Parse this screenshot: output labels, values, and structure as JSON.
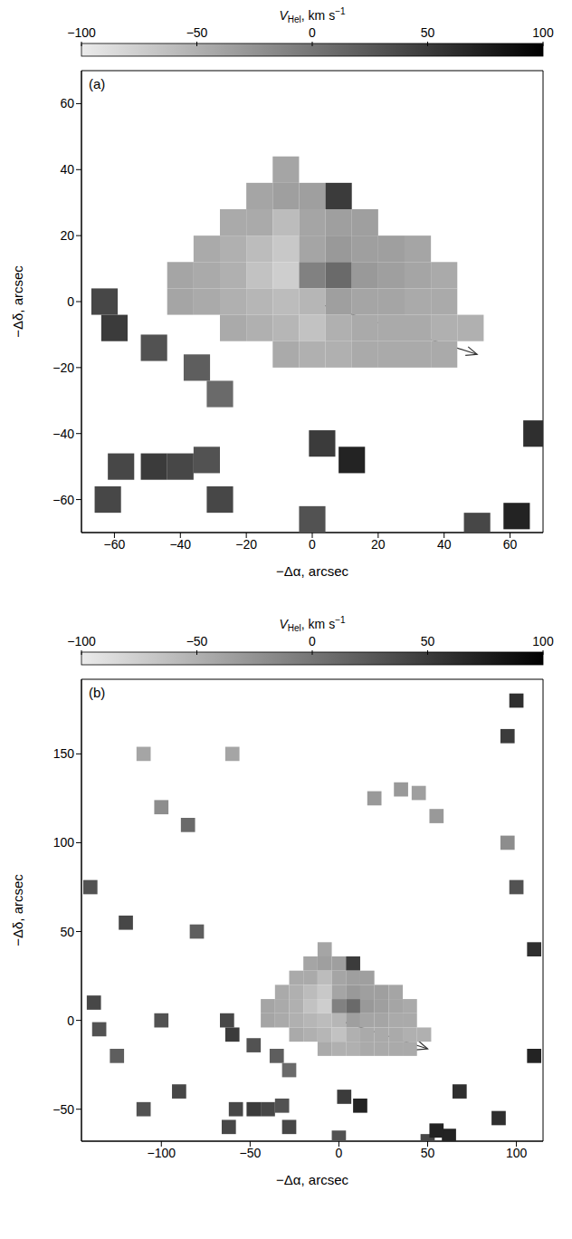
{
  "chart_data": [
    {
      "type": "scatter",
      "panel": "(a)",
      "marker": "square",
      "cell_size": 8,
      "x_label": "−Δα, arcsec",
      "y_label": "−Δδ, arcsec",
      "xlim": [
        -70,
        70
      ],
      "xticks": [
        -60,
        -40,
        -20,
        0,
        20,
        40,
        60
      ],
      "ylim": [
        -70,
        70
      ],
      "yticks": [
        -60,
        -40,
        -20,
        0,
        20,
        40,
        60
      ],
      "colorbar": {
        "label": "V",
        "label_sub": "Hel",
        "unit": ", km s",
        "unit_sup": "−1",
        "lim": [
          -100,
          100
        ],
        "ticks": [
          -100,
          -50,
          0,
          50,
          100
        ]
      },
      "arrow": {
        "from": [
          0,
          0
        ],
        "to": [
          50,
          -16
        ]
      },
      "points": [
        {
          "x": -8,
          "y": 40,
          "v": -40
        },
        {
          "x": -16,
          "y": 32,
          "v": -40
        },
        {
          "x": -8,
          "y": 32,
          "v": -35
        },
        {
          "x": 0,
          "y": 32,
          "v": -35
        },
        {
          "x": 8,
          "y": 32,
          "v": 50
        },
        {
          "x": -24,
          "y": 24,
          "v": -45
        },
        {
          "x": -16,
          "y": 24,
          "v": -45
        },
        {
          "x": -8,
          "y": 24,
          "v": -60
        },
        {
          "x": 0,
          "y": 24,
          "v": -40
        },
        {
          "x": 8,
          "y": 24,
          "v": -35
        },
        {
          "x": 16,
          "y": 24,
          "v": -35
        },
        {
          "x": -32,
          "y": 16,
          "v": -45
        },
        {
          "x": -24,
          "y": 16,
          "v": -50
        },
        {
          "x": -16,
          "y": 16,
          "v": -60
        },
        {
          "x": -8,
          "y": 16,
          "v": -70
        },
        {
          "x": 0,
          "y": 16,
          "v": -40
        },
        {
          "x": 8,
          "y": 16,
          "v": -30
        },
        {
          "x": 16,
          "y": 16,
          "v": -35
        },
        {
          "x": 24,
          "y": 16,
          "v": -35
        },
        {
          "x": 32,
          "y": 16,
          "v": -40
        },
        {
          "x": -40,
          "y": 8,
          "v": -40
        },
        {
          "x": -32,
          "y": 8,
          "v": -45
        },
        {
          "x": -24,
          "y": 8,
          "v": -50
        },
        {
          "x": -16,
          "y": 8,
          "v": -65
        },
        {
          "x": -8,
          "y": 8,
          "v": -75
        },
        {
          "x": 0,
          "y": 8,
          "v": -10
        },
        {
          "x": 8,
          "y": 8,
          "v": 10
        },
        {
          "x": 16,
          "y": 8,
          "v": -30
        },
        {
          "x": 24,
          "y": 8,
          "v": -35
        },
        {
          "x": 32,
          "y": 8,
          "v": -40
        },
        {
          "x": 40,
          "y": 8,
          "v": -45
        },
        {
          "x": -40,
          "y": 0,
          "v": -40
        },
        {
          "x": -32,
          "y": 0,
          "v": -45
        },
        {
          "x": -24,
          "y": 0,
          "v": -50
        },
        {
          "x": -16,
          "y": 0,
          "v": -55
        },
        {
          "x": -8,
          "y": 0,
          "v": -60
        },
        {
          "x": 0,
          "y": 0,
          "v": -55
        },
        {
          "x": 8,
          "y": 0,
          "v": -35
        },
        {
          "x": 16,
          "y": 0,
          "v": -40
        },
        {
          "x": 24,
          "y": 0,
          "v": -40
        },
        {
          "x": 32,
          "y": 0,
          "v": -45
        },
        {
          "x": 40,
          "y": 0,
          "v": -45
        },
        {
          "x": -24,
          "y": -8,
          "v": -45
        },
        {
          "x": -16,
          "y": -8,
          "v": -50
        },
        {
          "x": -8,
          "y": -8,
          "v": -55
        },
        {
          "x": 0,
          "y": -8,
          "v": -65
        },
        {
          "x": 8,
          "y": -8,
          "v": -50
        },
        {
          "x": 16,
          "y": -8,
          "v": -45
        },
        {
          "x": 24,
          "y": -8,
          "v": -45
        },
        {
          "x": 32,
          "y": -8,
          "v": -45
        },
        {
          "x": 40,
          "y": -8,
          "v": -50
        },
        {
          "x": 48,
          "y": -8,
          "v": -50
        },
        {
          "x": -8,
          "y": -16,
          "v": -45
        },
        {
          "x": 0,
          "y": -16,
          "v": -50
        },
        {
          "x": 8,
          "y": -16,
          "v": -50
        },
        {
          "x": 16,
          "y": -16,
          "v": -45
        },
        {
          "x": 24,
          "y": -16,
          "v": -45
        },
        {
          "x": 32,
          "y": -16,
          "v": -45
        },
        {
          "x": 40,
          "y": -16,
          "v": -45
        },
        {
          "x": -63,
          "y": 0,
          "v": 40
        },
        {
          "x": -60,
          "y": -8,
          "v": 50
        },
        {
          "x": -48,
          "y": -14,
          "v": 30
        },
        {
          "x": -35,
          "y": -20,
          "v": 20
        },
        {
          "x": -28,
          "y": -28,
          "v": 10
        },
        {
          "x": -58,
          "y": -50,
          "v": 40
        },
        {
          "x": -48,
          "y": -50,
          "v": 50
        },
        {
          "x": -40,
          "y": -50,
          "v": 40
        },
        {
          "x": -32,
          "y": -48,
          "v": 30
        },
        {
          "x": -28,
          "y": -60,
          "v": 40
        },
        {
          "x": -62,
          "y": -60,
          "v": 40
        },
        {
          "x": 0,
          "y": -66,
          "v": 30
        },
        {
          "x": 3,
          "y": -43,
          "v": 50
        },
        {
          "x": 12,
          "y": -48,
          "v": 70
        },
        {
          "x": 62,
          "y": -65,
          "v": 70
        },
        {
          "x": 50,
          "y": -68,
          "v": 40
        },
        {
          "x": 68,
          "y": -40,
          "v": 60
        }
      ]
    },
    {
      "type": "scatter",
      "panel": "(b)",
      "marker": "square",
      "cell_size": 8,
      "x_label": "−Δα, arcsec",
      "y_label": "−Δδ, arcsec",
      "xlim": [
        -145,
        115
      ],
      "xticks": [
        -100,
        -50,
        0,
        50,
        100
      ],
      "ylim": [
        -68,
        192
      ],
      "yticks": [
        -50,
        0,
        50,
        100,
        150
      ],
      "colorbar": {
        "label": "V",
        "label_sub": "Hel",
        "unit": ", km s",
        "unit_sup": "−1",
        "lim": [
          -100,
          100
        ],
        "ticks": [
          -100,
          -50,
          0,
          50,
          100
        ]
      },
      "arrow": {
        "from": [
          0,
          0
        ],
        "to": [
          50,
          -16
        ]
      },
      "points": [
        {
          "x": -8,
          "y": 40,
          "v": -40
        },
        {
          "x": -16,
          "y": 32,
          "v": -40
        },
        {
          "x": -8,
          "y": 32,
          "v": -35
        },
        {
          "x": 0,
          "y": 32,
          "v": -35
        },
        {
          "x": 8,
          "y": 32,
          "v": 50
        },
        {
          "x": -24,
          "y": 24,
          "v": -45
        },
        {
          "x": -16,
          "y": 24,
          "v": -45
        },
        {
          "x": -8,
          "y": 24,
          "v": -60
        },
        {
          "x": 0,
          "y": 24,
          "v": -40
        },
        {
          "x": 8,
          "y": 24,
          "v": -35
        },
        {
          "x": 16,
          "y": 24,
          "v": -35
        },
        {
          "x": -32,
          "y": 16,
          "v": -45
        },
        {
          "x": -24,
          "y": 16,
          "v": -50
        },
        {
          "x": -16,
          "y": 16,
          "v": -60
        },
        {
          "x": -8,
          "y": 16,
          "v": -70
        },
        {
          "x": 0,
          "y": 16,
          "v": -40
        },
        {
          "x": 8,
          "y": 16,
          "v": -30
        },
        {
          "x": 16,
          "y": 16,
          "v": -35
        },
        {
          "x": 24,
          "y": 16,
          "v": -35
        },
        {
          "x": 32,
          "y": 16,
          "v": -40
        },
        {
          "x": -40,
          "y": 8,
          "v": -40
        },
        {
          "x": -32,
          "y": 8,
          "v": -45
        },
        {
          "x": -24,
          "y": 8,
          "v": -50
        },
        {
          "x": -16,
          "y": 8,
          "v": -65
        },
        {
          "x": -8,
          "y": 8,
          "v": -75
        },
        {
          "x": 0,
          "y": 8,
          "v": -10
        },
        {
          "x": 8,
          "y": 8,
          "v": 10
        },
        {
          "x": 16,
          "y": 8,
          "v": -30
        },
        {
          "x": 24,
          "y": 8,
          "v": -35
        },
        {
          "x": 32,
          "y": 8,
          "v": -40
        },
        {
          "x": 40,
          "y": 8,
          "v": -45
        },
        {
          "x": -40,
          "y": 0,
          "v": -40
        },
        {
          "x": -32,
          "y": 0,
          "v": -45
        },
        {
          "x": -24,
          "y": 0,
          "v": -50
        },
        {
          "x": -16,
          "y": 0,
          "v": -55
        },
        {
          "x": -8,
          "y": 0,
          "v": -60
        },
        {
          "x": 0,
          "y": 0,
          "v": -55
        },
        {
          "x": 8,
          "y": 0,
          "v": -35
        },
        {
          "x": 16,
          "y": 0,
          "v": -40
        },
        {
          "x": 24,
          "y": 0,
          "v": -40
        },
        {
          "x": 32,
          "y": 0,
          "v": -45
        },
        {
          "x": 40,
          "y": 0,
          "v": -45
        },
        {
          "x": -24,
          "y": -8,
          "v": -45
        },
        {
          "x": -16,
          "y": -8,
          "v": -50
        },
        {
          "x": -8,
          "y": -8,
          "v": -55
        },
        {
          "x": 0,
          "y": -8,
          "v": -65
        },
        {
          "x": 8,
          "y": -8,
          "v": -50
        },
        {
          "x": 16,
          "y": -8,
          "v": -45
        },
        {
          "x": 24,
          "y": -8,
          "v": -45
        },
        {
          "x": 32,
          "y": -8,
          "v": -45
        },
        {
          "x": 40,
          "y": -8,
          "v": -50
        },
        {
          "x": 48,
          "y": -8,
          "v": -50
        },
        {
          "x": -8,
          "y": -16,
          "v": -45
        },
        {
          "x": 0,
          "y": -16,
          "v": -50
        },
        {
          "x": 8,
          "y": -16,
          "v": -50
        },
        {
          "x": 16,
          "y": -16,
          "v": -45
        },
        {
          "x": 24,
          "y": -16,
          "v": -45
        },
        {
          "x": 32,
          "y": -16,
          "v": -45
        },
        {
          "x": 40,
          "y": -16,
          "v": -45
        },
        {
          "x": -63,
          "y": 0,
          "v": 40
        },
        {
          "x": -60,
          "y": -8,
          "v": 50
        },
        {
          "x": -48,
          "y": -14,
          "v": 30
        },
        {
          "x": -35,
          "y": -20,
          "v": 20
        },
        {
          "x": -28,
          "y": -28,
          "v": 10
        },
        {
          "x": -58,
          "y": -50,
          "v": 40
        },
        {
          "x": -48,
          "y": -50,
          "v": 50
        },
        {
          "x": -40,
          "y": -50,
          "v": 40
        },
        {
          "x": -32,
          "y": -48,
          "v": 30
        },
        {
          "x": -28,
          "y": -60,
          "v": 40
        },
        {
          "x": -62,
          "y": -60,
          "v": 40
        },
        {
          "x": 0,
          "y": -66,
          "v": 30
        },
        {
          "x": 3,
          "y": -43,
          "v": 50
        },
        {
          "x": 12,
          "y": -48,
          "v": 70
        },
        {
          "x": 62,
          "y": -65,
          "v": 70
        },
        {
          "x": 50,
          "y": -68,
          "v": 40
        },
        {
          "x": 68,
          "y": -40,
          "v": 60
        },
        {
          "x": -140,
          "y": 75,
          "v": 30
        },
        {
          "x": -138,
          "y": 10,
          "v": 40
        },
        {
          "x": -135,
          "y": -5,
          "v": 30
        },
        {
          "x": -125,
          "y": -20,
          "v": 20
        },
        {
          "x": -100,
          "y": 120,
          "v": -20
        },
        {
          "x": -85,
          "y": 110,
          "v": 10
        },
        {
          "x": -110,
          "y": 150,
          "v": -40
        },
        {
          "x": -60,
          "y": 150,
          "v": -40
        },
        {
          "x": 20,
          "y": 125,
          "v": -30
        },
        {
          "x": 35,
          "y": 130,
          "v": -30
        },
        {
          "x": 45,
          "y": 128,
          "v": -35
        },
        {
          "x": 55,
          "y": 115,
          "v": -30
        },
        {
          "x": 95,
          "y": 160,
          "v": 50
        },
        {
          "x": 100,
          "y": 180,
          "v": 60
        },
        {
          "x": 95,
          "y": 100,
          "v": -20
        },
        {
          "x": 100,
          "y": 75,
          "v": 30
        },
        {
          "x": 110,
          "y": -20,
          "v": 70
        },
        {
          "x": 110,
          "y": 40,
          "v": 60
        },
        {
          "x": -80,
          "y": 50,
          "v": 20
        },
        {
          "x": -120,
          "y": 55,
          "v": 40
        },
        {
          "x": -100,
          "y": 0,
          "v": 30
        },
        {
          "x": -90,
          "y": -40,
          "v": 40
        },
        {
          "x": -110,
          "y": -50,
          "v": 30
        },
        {
          "x": 55,
          "y": -62,
          "v": 70
        },
        {
          "x": 90,
          "y": -55,
          "v": 60
        }
      ]
    }
  ]
}
